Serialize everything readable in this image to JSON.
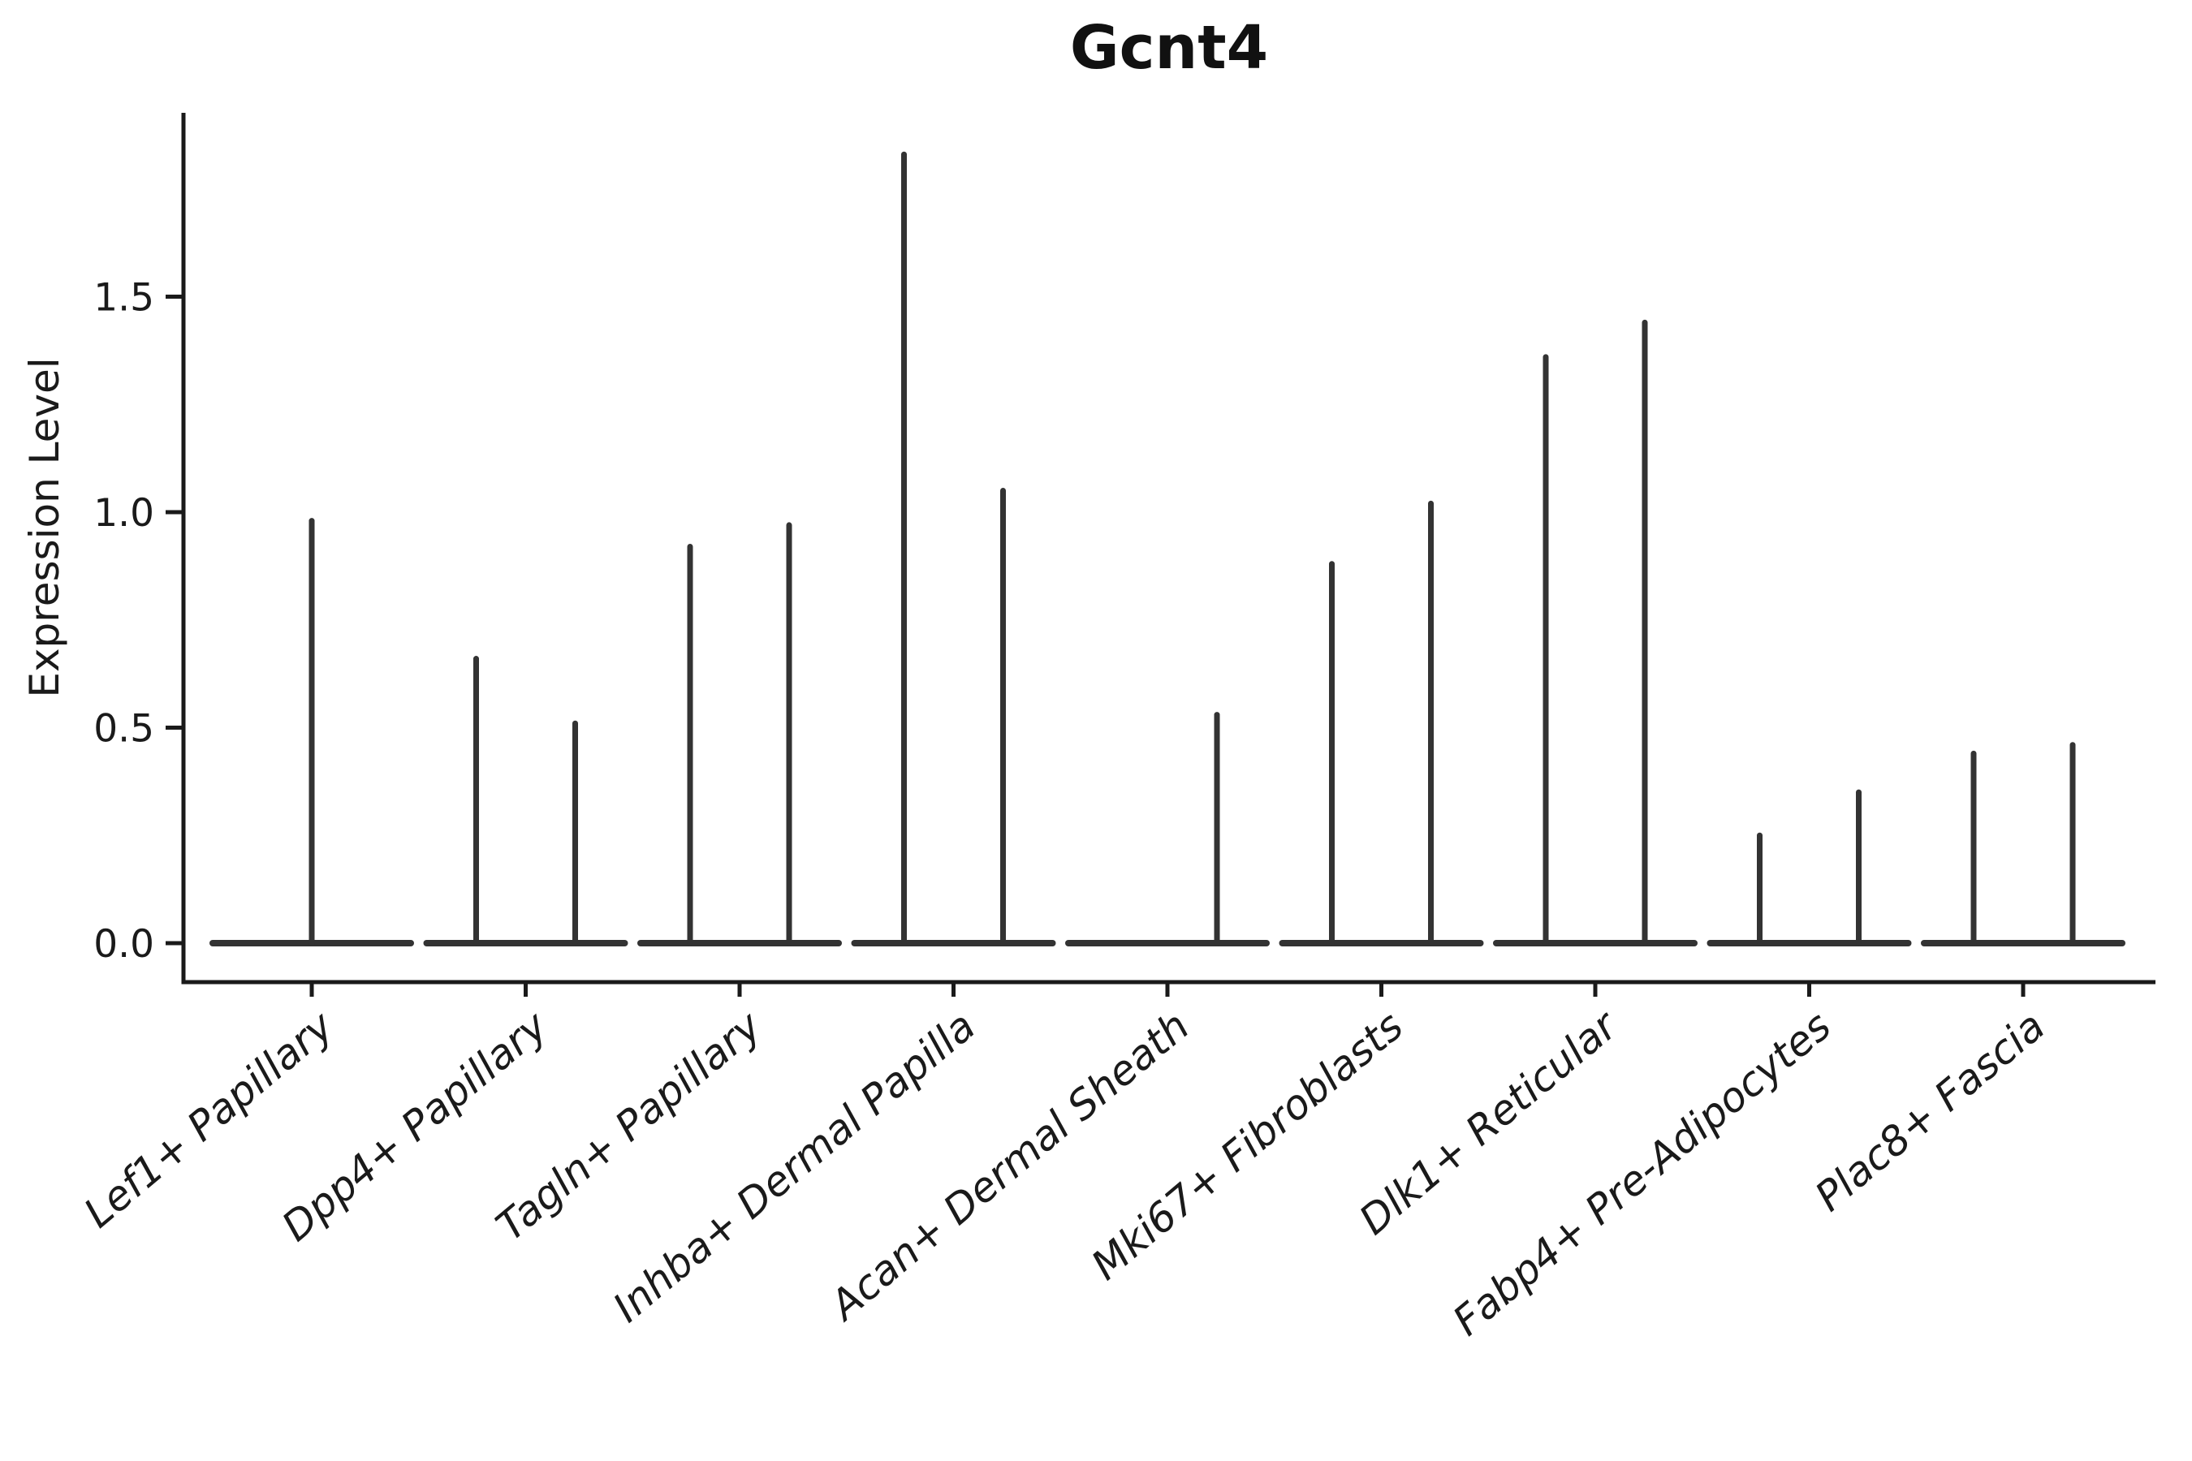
{
  "chart_data": {
    "type": "violin",
    "title": "Gcnt4",
    "ylabel": "Expression Level",
    "xlabel": "",
    "ylim": [
      -0.09,
      1.93
    ],
    "yticks": [
      "0.0",
      "0.5",
      "1.0",
      "1.5"
    ],
    "grid": false,
    "legend": null,
    "line_color": "#333333",
    "axis_color": "#1a1a1a",
    "categories": [
      {
        "label": "Lef1+ Papillary",
        "violin_maxima": [
          0.98
        ]
      },
      {
        "label": "Dpp4+ Papillary",
        "violin_maxima": [
          0.66,
          0.51
        ]
      },
      {
        "label": "Tagln+ Papillary",
        "violin_maxima": [
          0.92,
          0.97
        ]
      },
      {
        "label": "Inhba+ Dermal Papilla",
        "violin_maxima": [
          1.83,
          1.05
        ]
      },
      {
        "label": "Acan+ Dermal Sheath",
        "violin_maxima": [
          null,
          0.53
        ]
      },
      {
        "label": "Mki67+ Fibroblasts",
        "violin_maxima": [
          0.88,
          1.02
        ]
      },
      {
        "label": "Dlk1+ Reticular",
        "violin_maxima": [
          1.36,
          1.44
        ]
      },
      {
        "label": "Fabp4+ Pre-Adipocytes",
        "violin_maxima": [
          0.25,
          0.35
        ]
      },
      {
        "label": "Plac8+ Fascia",
        "violin_maxima": [
          0.44,
          0.46
        ]
      }
    ]
  }
}
